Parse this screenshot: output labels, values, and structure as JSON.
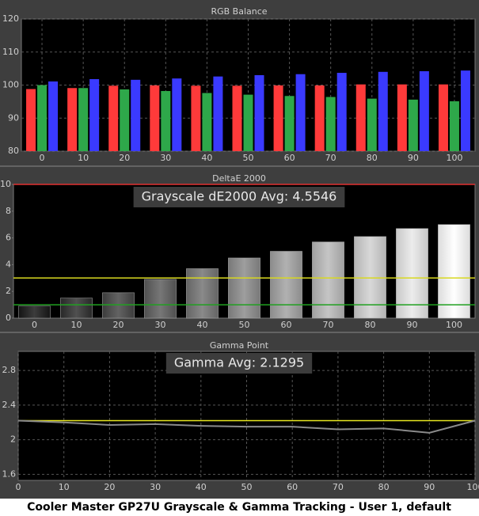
{
  "chart_data": [
    {
      "type": "grouped_bar",
      "title": "RGB Balance",
      "categories": [
        "0",
        "10",
        "20",
        "30",
        "40",
        "50",
        "60",
        "70",
        "80",
        "90",
        "100"
      ],
      "series": [
        {
          "color": "#ff3a3a",
          "values": [
            98.8,
            99.1,
            99.8,
            99.9,
            99.8,
            99.8,
            99.9,
            99.9,
            100.2,
            100.2,
            100.2
          ]
        },
        {
          "color": "#2ea84a",
          "values": [
            100,
            99.1,
            98.7,
            98.2,
            97.6,
            97.1,
            96.7,
            96.4,
            95.9,
            95.6,
            95.1
          ]
        },
        {
          "color": "#3a3aff",
          "values": [
            101.1,
            101.8,
            101.6,
            102,
            102.6,
            103,
            103.3,
            103.7,
            104,
            104.2,
            104.4
          ]
        }
      ],
      "ylim": [
        80,
        120
      ],
      "yticks": [
        80,
        90,
        100,
        110,
        120
      ],
      "grid": true
    },
    {
      "type": "bar",
      "title": "DeltaE 2000",
      "annotation": "Grayscale dE2000 Avg: 4.5546",
      "categories": [
        "0",
        "10",
        "20",
        "30",
        "40",
        "50",
        "60",
        "70",
        "80",
        "90",
        "100"
      ],
      "values": [
        0.9,
        1.5,
        1.9,
        2.9,
        3.7,
        4.5,
        5.0,
        5.7,
        6.1,
        6.7,
        7.0
      ],
      "ylim": [
        0,
        10
      ],
      "yticks": [
        0,
        2,
        4,
        6,
        8,
        10
      ],
      "grid": false,
      "reference_lines": [
        {
          "value": 10,
          "color": "#e03030"
        },
        {
          "value": 3,
          "color": "#d8d820"
        },
        {
          "value": 1,
          "color": "#20a020"
        }
      ]
    },
    {
      "type": "line",
      "title": "Gamma Point",
      "annotation": "Gamma Avg: 2.1295",
      "x": [
        0,
        10,
        20,
        30,
        40,
        50,
        60,
        70,
        80,
        90,
        100
      ],
      "series": [
        {
          "color": "#8a8a8a",
          "values": [
            2.22,
            2.2,
            2.17,
            2.18,
            2.16,
            2.15,
            2.15,
            2.12,
            2.13,
            2.08,
            2.22
          ]
        }
      ],
      "xlim": [
        0,
        100
      ],
      "xticks": [
        0,
        10,
        20,
        30,
        40,
        50,
        60,
        70,
        80,
        90,
        100
      ],
      "ylim": [
        1.53,
        3.02
      ],
      "yticks": [
        1.6,
        2,
        2.4,
        2.8
      ],
      "grid": true,
      "reference_lines": [
        {
          "value": 2.22,
          "color": "#e8e820"
        }
      ]
    }
  ],
  "caption": "Cooler Master GP27U Grayscale & Gamma Tracking - User 1, default"
}
